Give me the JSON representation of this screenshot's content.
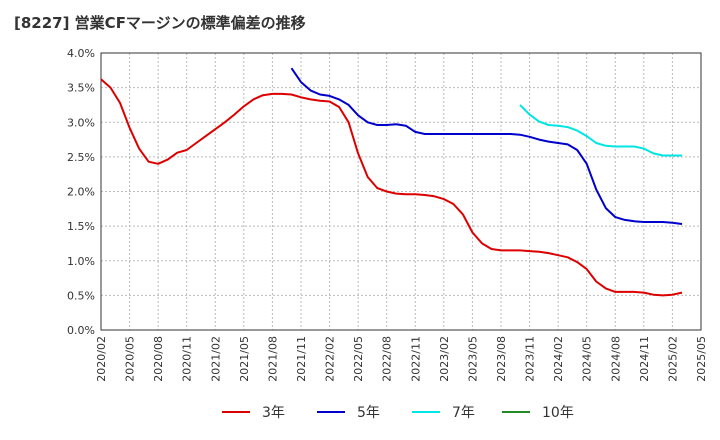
{
  "chart_data": {
    "type": "line",
    "title": "[8227]  営業CFマージンの標準偏差の推移",
    "xlabel": "",
    "ylabel": "",
    "ylim": [
      0,
      0.04
    ],
    "xlim": [
      "2020-02",
      "2025-05"
    ],
    "y_ticks": [
      "0.0%",
      "0.5%",
      "1.0%",
      "1.5%",
      "2.0%",
      "2.5%",
      "3.0%",
      "3.5%",
      "4.0%"
    ],
    "x_ticks": [
      "2020/02",
      "2020/05",
      "2020/08",
      "2020/11",
      "2021/02",
      "2021/05",
      "2021/08",
      "2021/11",
      "2022/02",
      "2022/05",
      "2022/08",
      "2022/11",
      "2023/02",
      "2023/05",
      "2023/08",
      "2023/11",
      "2024/02",
      "2024/05",
      "2024/08",
      "2024/11",
      "2025/02",
      "2025/05"
    ],
    "grid": true,
    "legend_position": "bottom",
    "series": [
      {
        "name": "3年",
        "color": "#dd0000",
        "points": [
          [
            "2020-02",
            0.0362
          ],
          [
            "2020-03",
            0.035
          ],
          [
            "2020-04",
            0.0328
          ],
          [
            "2020-05",
            0.0292
          ],
          [
            "2020-06",
            0.0262
          ],
          [
            "2020-07",
            0.0243
          ],
          [
            "2020-08",
            0.024
          ],
          [
            "2020-09",
            0.0246
          ],
          [
            "2020-10",
            0.0256
          ],
          [
            "2020-11",
            0.026
          ],
          [
            "2020-12",
            0.027
          ],
          [
            "2021-01",
            0.028
          ],
          [
            "2021-02",
            0.029
          ],
          [
            "2021-03",
            0.03
          ],
          [
            "2021-04",
            0.0311
          ],
          [
            "2021-05",
            0.0323
          ],
          [
            "2021-06",
            0.0333
          ],
          [
            "2021-07",
            0.0339
          ],
          [
            "2021-08",
            0.0341
          ],
          [
            "2021-09",
            0.0341
          ],
          [
            "2021-10",
            0.034
          ],
          [
            "2021-11",
            0.0336
          ],
          [
            "2021-12",
            0.0333
          ],
          [
            "2022-01",
            0.0331
          ],
          [
            "2022-02",
            0.033
          ],
          [
            "2022-03",
            0.0322
          ],
          [
            "2022-04",
            0.03
          ],
          [
            "2022-05",
            0.0255
          ],
          [
            "2022-06",
            0.0221
          ],
          [
            "2022-07",
            0.0205
          ],
          [
            "2022-08",
            0.02
          ],
          [
            "2022-09",
            0.0197
          ],
          [
            "2022-10",
            0.0196
          ],
          [
            "2022-11",
            0.0196
          ],
          [
            "2022-12",
            0.0195
          ],
          [
            "2023-01",
            0.0193
          ],
          [
            "2023-02",
            0.0189
          ],
          [
            "2023-03",
            0.0182
          ],
          [
            "2023-04",
            0.0167
          ],
          [
            "2023-05",
            0.0141
          ],
          [
            "2023-06",
            0.0125
          ],
          [
            "2023-07",
            0.0117
          ],
          [
            "2023-08",
            0.0115
          ],
          [
            "2023-09",
            0.0115
          ],
          [
            "2023-10",
            0.0115
          ],
          [
            "2023-11",
            0.0114
          ],
          [
            "2023-12",
            0.0113
          ],
          [
            "2024-01",
            0.0111
          ],
          [
            "2024-02",
            0.0108
          ],
          [
            "2024-03",
            0.0105
          ],
          [
            "2024-04",
            0.0098
          ],
          [
            "2024-05",
            0.0088
          ],
          [
            "2024-06",
            0.007
          ],
          [
            "2024-07",
            0.006
          ],
          [
            "2024-08",
            0.0055
          ],
          [
            "2024-09",
            0.0055
          ],
          [
            "2024-10",
            0.0055
          ],
          [
            "2024-11",
            0.0054
          ],
          [
            "2024-12",
            0.0051
          ],
          [
            "2025-01",
            0.005
          ],
          [
            "2025-02",
            0.0051
          ],
          [
            "2025-03",
            0.0054
          ]
        ]
      },
      {
        "name": "5年",
        "color": "#0000cc",
        "points": [
          [
            "2021-10",
            0.0378
          ],
          [
            "2021-11",
            0.0358
          ],
          [
            "2021-12",
            0.0346
          ],
          [
            "2022-01",
            0.034
          ],
          [
            "2022-02",
            0.0338
          ],
          [
            "2022-03",
            0.0333
          ],
          [
            "2022-04",
            0.0325
          ],
          [
            "2022-05",
            0.031
          ],
          [
            "2022-06",
            0.03
          ],
          [
            "2022-07",
            0.0296
          ],
          [
            "2022-08",
            0.0296
          ],
          [
            "2022-09",
            0.0297
          ],
          [
            "2022-10",
            0.0295
          ],
          [
            "2022-11",
            0.0286
          ],
          [
            "2022-12",
            0.0283
          ],
          [
            "2023-01",
            0.0283
          ],
          [
            "2023-02",
            0.0283
          ],
          [
            "2023-03",
            0.0283
          ],
          [
            "2023-04",
            0.0283
          ],
          [
            "2023-05",
            0.0283
          ],
          [
            "2023-06",
            0.0283
          ],
          [
            "2023-07",
            0.0283
          ],
          [
            "2023-08",
            0.0283
          ],
          [
            "2023-09",
            0.0283
          ],
          [
            "2023-10",
            0.0282
          ],
          [
            "2023-11",
            0.0279
          ],
          [
            "2023-12",
            0.0275
          ],
          [
            "2024-01",
            0.0272
          ],
          [
            "2024-02",
            0.027
          ],
          [
            "2024-03",
            0.0268
          ],
          [
            "2024-04",
            0.026
          ],
          [
            "2024-05",
            0.024
          ],
          [
            "2024-06",
            0.0203
          ],
          [
            "2024-07",
            0.0176
          ],
          [
            "2024-08",
            0.0163
          ],
          [
            "2024-09",
            0.0159
          ],
          [
            "2024-10",
            0.0157
          ],
          [
            "2024-11",
            0.0156
          ],
          [
            "2024-12",
            0.0156
          ],
          [
            "2025-01",
            0.0156
          ],
          [
            "2025-02",
            0.0155
          ],
          [
            "2025-03",
            0.0153
          ]
        ]
      },
      {
        "name": "7年",
        "color": "#00e5e5",
        "points": [
          [
            "2023-10",
            0.0325
          ],
          [
            "2023-11",
            0.0311
          ],
          [
            "2023-12",
            0.0301
          ],
          [
            "2024-01",
            0.0296
          ],
          [
            "2024-02",
            0.0295
          ],
          [
            "2024-03",
            0.0293
          ],
          [
            "2024-04",
            0.0288
          ],
          [
            "2024-05",
            0.028
          ],
          [
            "2024-06",
            0.027
          ],
          [
            "2024-07",
            0.0266
          ],
          [
            "2024-08",
            0.0265
          ],
          [
            "2024-09",
            0.0265
          ],
          [
            "2024-10",
            0.0265
          ],
          [
            "2024-11",
            0.0262
          ],
          [
            "2024-12",
            0.0255
          ],
          [
            "2025-01",
            0.0252
          ],
          [
            "2025-02",
            0.0252
          ],
          [
            "2025-03",
            0.0252
          ]
        ]
      },
      {
        "name": "10年",
        "color": "#228b22",
        "points": []
      }
    ]
  }
}
